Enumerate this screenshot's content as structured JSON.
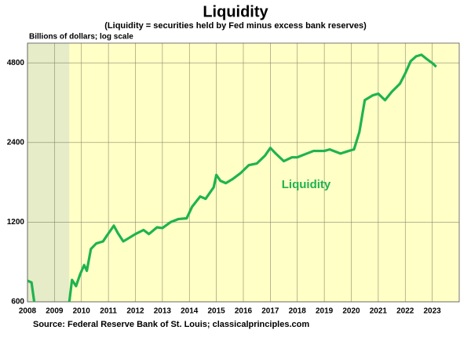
{
  "chart_data": {
    "type": "line",
    "title": "Liquidity",
    "subtitle": "(Liquidity = securities held by Fed minus excess bank reserves)",
    "y_label": "Billions of dollars; log scale",
    "source": "Source: Federal Reserve Bank of St. Louis; classicalprinciples.com",
    "annotation": "Liquidity",
    "log_scale": true,
    "grid": true,
    "shaded_region": [
      2008,
      2009.55
    ],
    "xlim": [
      2008,
      2024
    ],
    "xticks": [
      2008,
      2009,
      2010,
      2011,
      2012,
      2013,
      2014,
      2015,
      2016,
      2017,
      2018,
      2019,
      2020,
      2021,
      2022,
      2023
    ],
    "ylim": [
      600,
      5700
    ],
    "yticks": [
      600,
      1200,
      2400,
      4800
    ],
    "x": [
      2008.0,
      2008.15,
      2008.25,
      2008.5,
      2009.55,
      2009.65,
      2009.8,
      2009.95,
      2010.1,
      2010.2,
      2010.35,
      2010.55,
      2010.8,
      2010.95,
      2011.2,
      2011.35,
      2011.55,
      2011.75,
      2012.0,
      2012.3,
      2012.5,
      2012.8,
      2013.0,
      2013.3,
      2013.6,
      2013.9,
      2014.1,
      2014.4,
      2014.6,
      2014.9,
      2015.0,
      2015.15,
      2015.35,
      2015.6,
      2015.9,
      2016.2,
      2016.5,
      2016.8,
      2017.0,
      2017.2,
      2017.5,
      2017.8,
      2018.0,
      2018.3,
      2018.6,
      2019.0,
      2019.2,
      2019.6,
      2019.9,
      2020.1,
      2020.3,
      2020.5,
      2020.8,
      2021.0,
      2021.25,
      2021.5,
      2021.8,
      2022.0,
      2022.2,
      2022.4,
      2022.6,
      2022.8,
      2023.0,
      2023.15
    ],
    "series": [
      {
        "name": "Liquidity",
        "color": "#1fb350",
        "values": [
          721,
          710,
          600,
          null,
          600,
          726,
          688,
          762,
          826,
          786,
          950,
          997,
          1015,
          1070,
          1164,
          1091,
          1015,
          1044,
          1082,
          1121,
          1082,
          1147,
          1140,
          1200,
          1233,
          1241,
          1372,
          1500,
          1470,
          1625,
          1810,
          1720,
          1685,
          1745,
          1840,
          1970,
          2000,
          2140,
          2290,
          2180,
          2040,
          2110,
          2110,
          2170,
          2230,
          2230,
          2260,
          2180,
          2230,
          2260,
          2630,
          3470,
          3620,
          3670,
          3470,
          3730,
          4000,
          4380,
          4870,
          5080,
          5150,
          4960,
          4790,
          4640
        ]
      }
    ]
  }
}
